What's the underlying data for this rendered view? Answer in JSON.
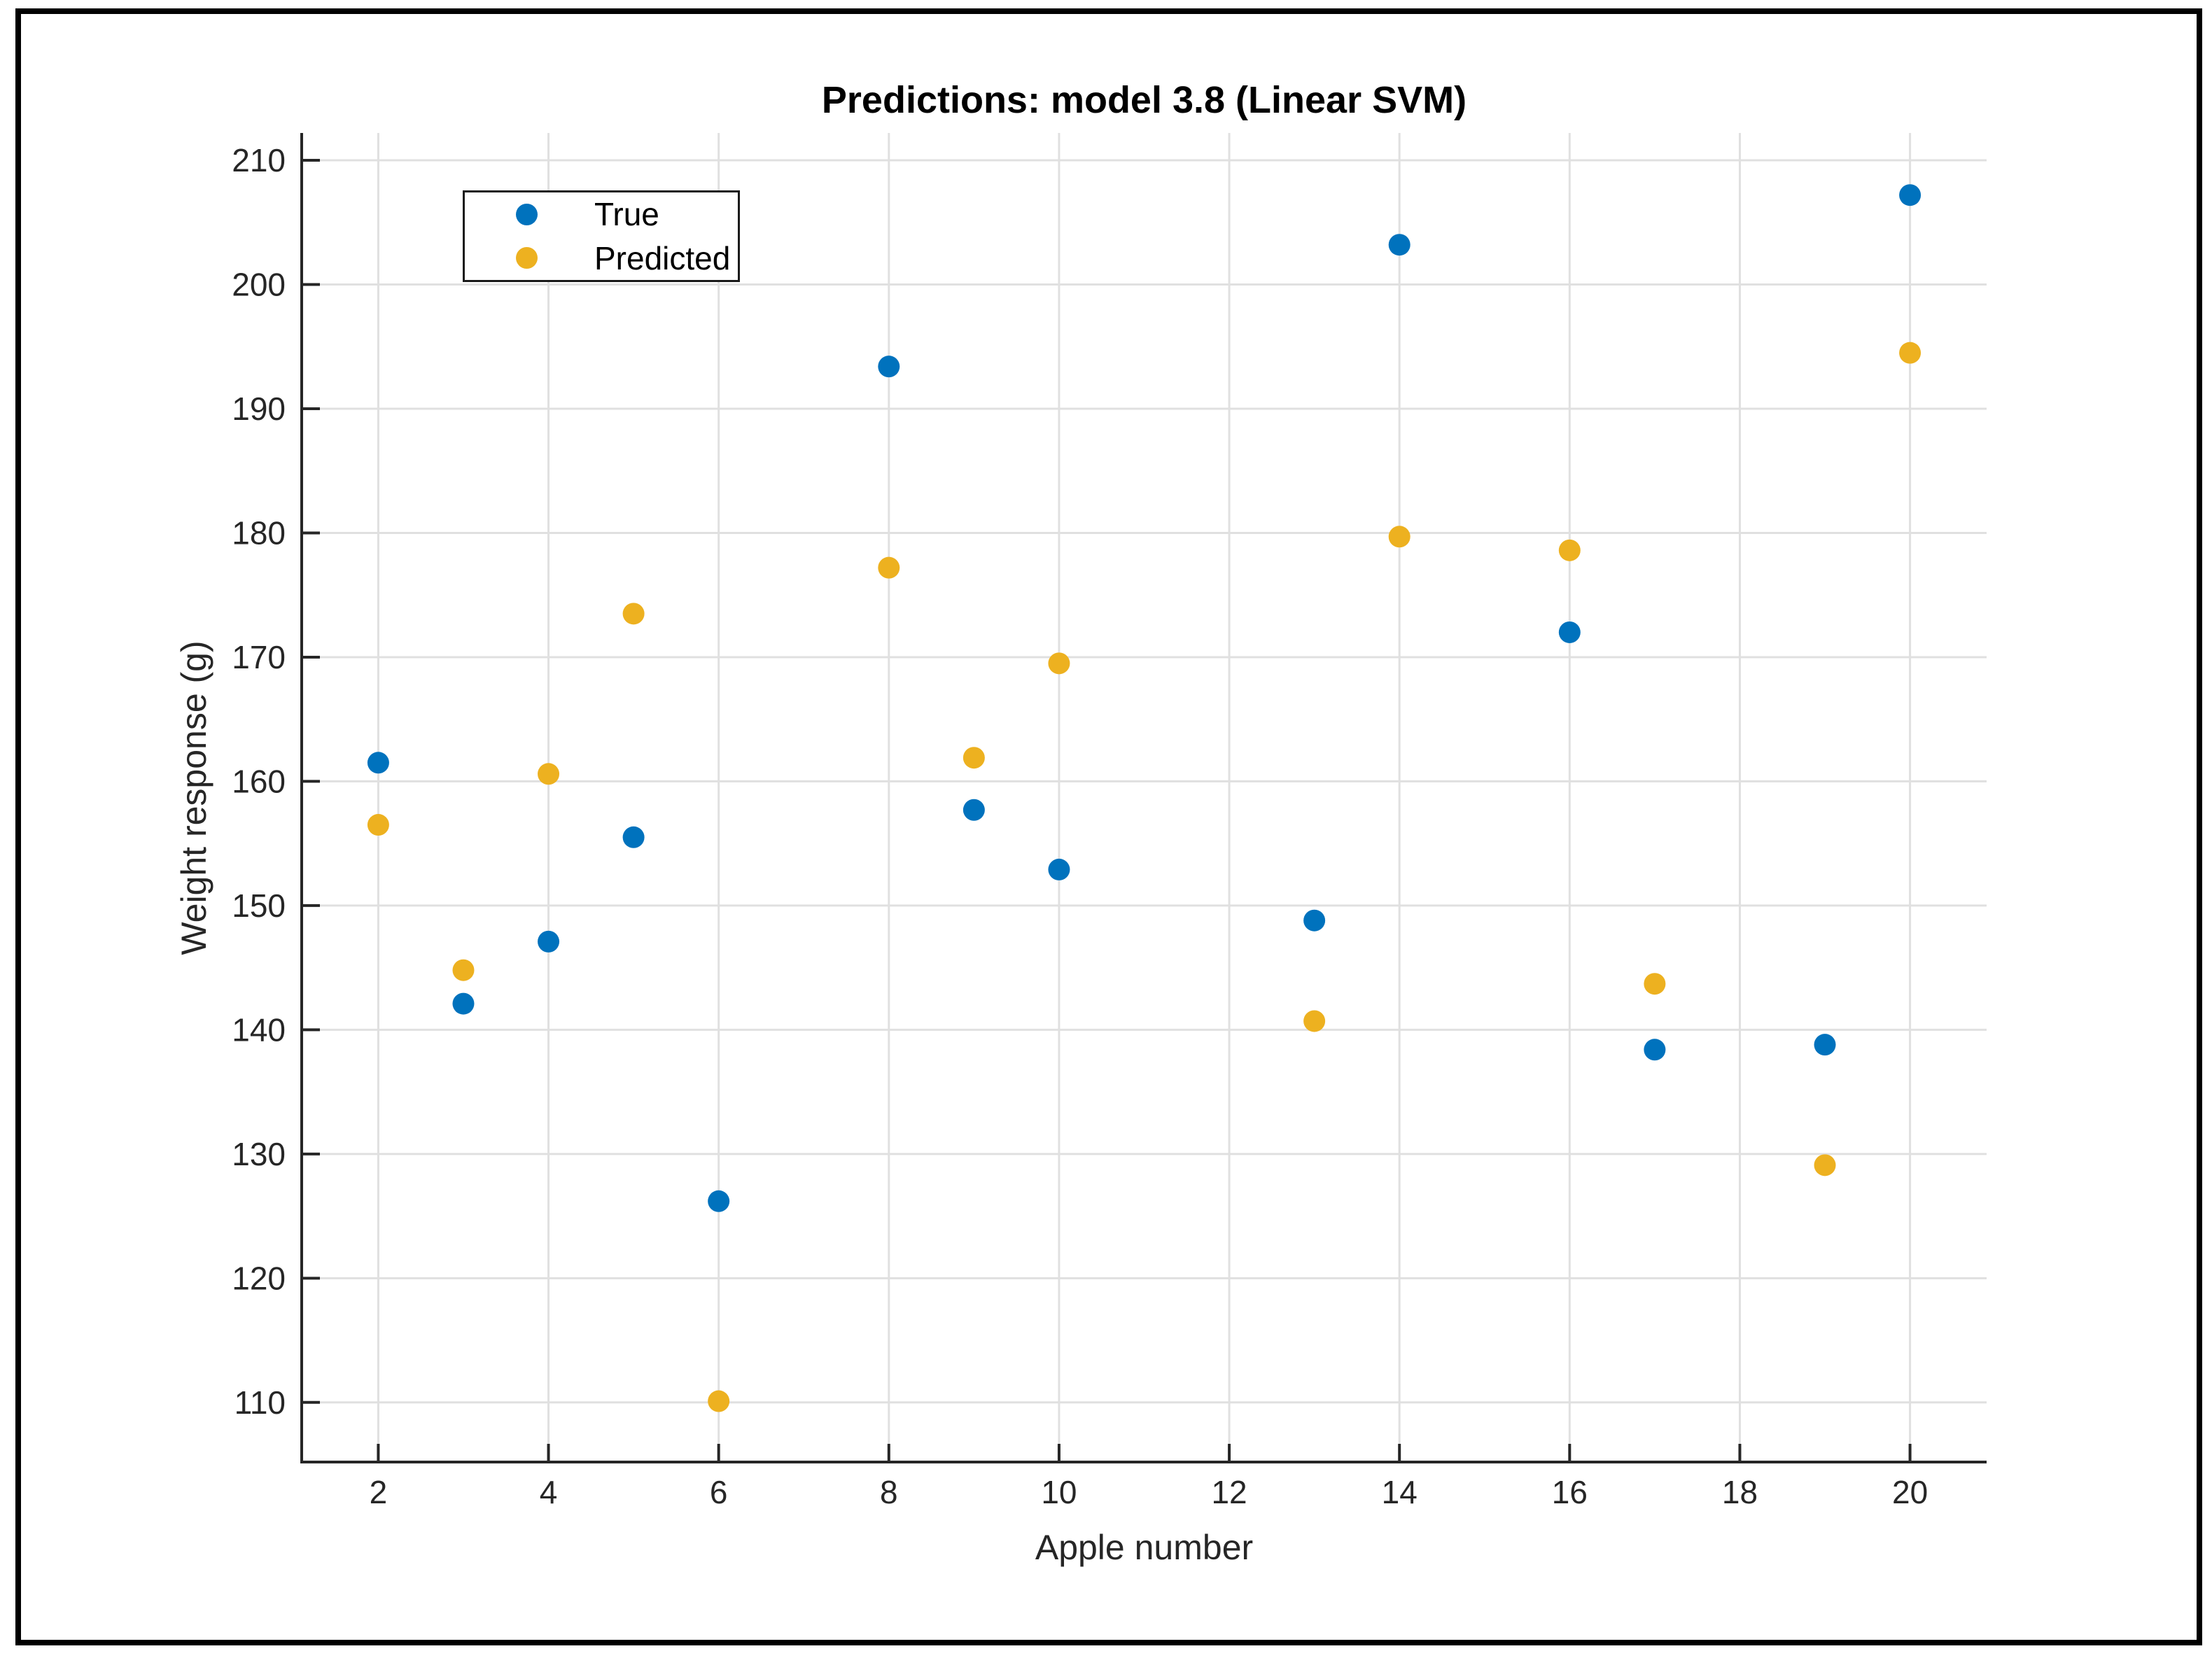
{
  "figure": {
    "title": "Predictions: model 3.8 (Linear SVM)"
  },
  "axes": {
    "xlabel": "Apple number",
    "ylabel": "Weight response (g)"
  },
  "legend": {
    "items": [
      {
        "label": "True",
        "color": "#0072BD"
      },
      {
        "label": "Predicted",
        "color": "#EDB120"
      }
    ]
  },
  "colors": {
    "true_series": "#0072BD",
    "predicted_series": "#EDB120",
    "grid": "#e0e0e0",
    "axis": "#262626",
    "figure_border": "#000000",
    "background": "#ffffff"
  },
  "chart_data": {
    "type": "scatter",
    "title": "Predictions: model 3.8 (Linear SVM)",
    "xlabel": "Apple number",
    "ylabel": "Weight response (g)",
    "x": [
      2,
      3,
      4,
      5,
      6,
      8,
      9,
      10,
      13,
      14,
      16,
      17,
      19,
      20
    ],
    "series": [
      {
        "name": "True",
        "color": "#0072BD",
        "values": [
          161.5,
          142.1,
          147.1,
          155.5,
          126.2,
          193.4,
          157.7,
          152.9,
          148.8,
          203.2,
          172.0,
          138.4,
          138.8,
          207.2
        ]
      },
      {
        "name": "Predicted",
        "color": "#EDB120",
        "values": [
          156.5,
          144.8,
          160.6,
          173.5,
          110.1,
          177.2,
          161.9,
          169.5,
          140.7,
          179.7,
          178.6,
          143.7,
          129.1,
          194.5
        ]
      }
    ],
    "x_ticks": [
      2,
      4,
      6,
      8,
      10,
      12,
      14,
      16,
      18,
      20
    ],
    "y_ticks": [
      110,
      120,
      130,
      140,
      150,
      160,
      170,
      180,
      190,
      200,
      210
    ],
    "xlim": [
      1.1,
      20.9
    ],
    "ylim": [
      105.2,
      212.2
    ],
    "grid": true,
    "legend_position": "northwest",
    "marker": "filled-circle"
  }
}
